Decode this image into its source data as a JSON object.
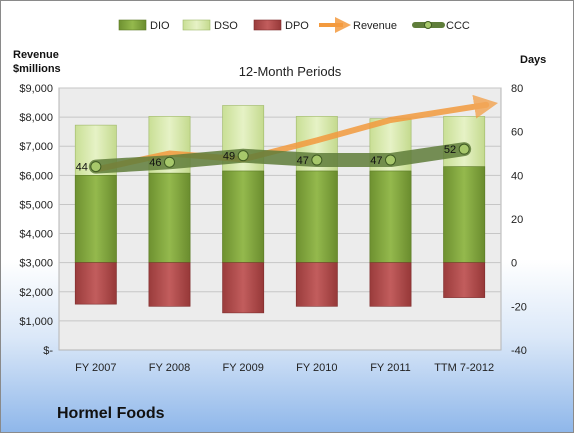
{
  "chart_data": {
    "type": "bar",
    "title": "12-Month Periods",
    "company": "Hormel Foods",
    "left_axis_title": [
      "Revenue",
      "$millions"
    ],
    "right_axis_title": "Days",
    "categories": [
      "FY 2007",
      "FY 2008",
      "FY 2009",
      "FY 2010",
      "FY 2011",
      "TTM 7-2012"
    ],
    "left_ticks": [
      "$-",
      "$1,000",
      "$2,000",
      "$3,000",
      "$4,000",
      "$5,000",
      "$6,000",
      "$7,000",
      "$8,000",
      "$9,000"
    ],
    "right_ticks": [
      "-40",
      "-20",
      "0",
      "20",
      "40",
      "60",
      "80"
    ],
    "left_range": [
      0,
      9000
    ],
    "right_range": [
      -40,
      80
    ],
    "legend": [
      "DIO",
      "DSO",
      "DPO",
      "Revenue",
      "CCC"
    ],
    "legend_position": "top",
    "series": [
      {
        "name": "DIO",
        "axis": "days",
        "stack": "positive",
        "values": [
          40,
          41,
          42,
          42,
          42,
          44
        ]
      },
      {
        "name": "DSO",
        "axis": "days",
        "stack": "positive",
        "values": [
          63,
          67,
          72,
          67,
          66,
          67
        ]
      },
      {
        "name": "DPO",
        "axis": "days",
        "stack": "negative",
        "values": [
          -19,
          -20,
          -23,
          -20,
          -20,
          -16
        ]
      },
      {
        "name": "CCC",
        "axis": "days",
        "type": "line",
        "values": [
          44,
          46,
          49,
          47,
          47,
          52
        ]
      },
      {
        "name": "Revenue",
        "axis": "revenue",
        "type": "arrow-line",
        "values": [
          6200,
          6750,
          6550,
          7200,
          7900,
          8250
        ]
      }
    ],
    "grid": true,
    "colors": {
      "DIO": "#7ea23a",
      "DSO": "#d6e8a8",
      "DPO": "#b04a4a",
      "Revenue": "#f39a3e",
      "CCC": "#5f7d3a",
      "plot_bg": "#ececec"
    }
  }
}
